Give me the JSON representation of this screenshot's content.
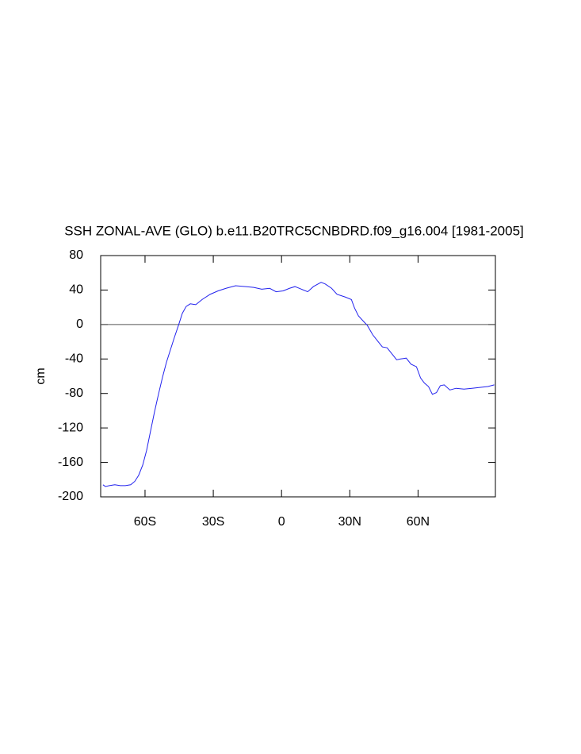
{
  "chart_data": {
    "type": "line",
    "title": "SSH ZONAL-AVE (GLO) b.e11.B20TRC5CNBDRD.f09_g16.004 [1981-2005]",
    "y_label": "cm",
    "xlim": [
      -79.5,
      94
    ],
    "ylim": [
      -200,
      80
    ],
    "xticks": [
      {
        "value": -60,
        "label": "60S"
      },
      {
        "value": -30,
        "label": "30S"
      },
      0,
      {
        "value": 30,
        "label": "30N"
      },
      {
        "value": 60,
        "label": "60N"
      }
    ],
    "yticks": [
      80,
      40,
      0,
      -40,
      -80,
      -120,
      -160,
      -200
    ],
    "reference_line": 0,
    "reference_color": "#555555",
    "grid": false,
    "series": [
      {
        "name": "SSH",
        "color": "#2222ee",
        "x": [
          -78.5,
          -77.4,
          -75.7,
          -73.3,
          -70.8,
          -68.7,
          -66.3,
          -64.5,
          -62.8,
          -61,
          -59.3,
          -57.6,
          -55.8,
          -54.1,
          -52.3,
          -50.6,
          -48.8,
          -47.1,
          -45.3,
          -43.6,
          -41.9,
          -40.1,
          -37.7,
          -34.9,
          -31.4,
          -27.9,
          -24.4,
          -20.2,
          -15.7,
          -12.2,
          -8.7,
          -5.2,
          -2.4,
          0.7,
          3.5,
          5.9,
          8.7,
          11.5,
          14,
          17.4,
          19.2,
          22,
          24.4,
          27.9,
          30.7,
          32.1,
          33.8,
          35.9,
          37.7,
          40.1,
          41.9,
          44.3,
          46.4,
          48.8,
          50.6,
          52.3,
          54.8,
          56.9,
          59.3,
          61.1,
          62.8,
          64.6,
          66.3,
          68.1,
          69.8,
          71.5,
          74,
          76.7,
          80.2,
          83.7,
          87.2,
          90.7,
          93.5
        ],
        "values": [
          -186,
          -188,
          -187,
          -186,
          -187,
          -187,
          -186,
          -182,
          -175,
          -163,
          -146,
          -124,
          -101,
          -81,
          -61,
          -44,
          -29,
          -15,
          -1,
          13,
          21,
          24,
          23,
          29,
          35,
          39,
          42,
          45,
          44,
          43,
          41,
          42,
          38,
          39,
          42,
          44,
          41,
          38,
          44,
          49,
          47,
          42,
          35,
          32,
          29,
          19,
          10,
          4,
          -1,
          -12,
          -18,
          -26,
          -27,
          -35,
          -41,
          -40,
          -39,
          -46,
          -49,
          -62,
          -68,
          -72,
          -81,
          -79,
          -71,
          -70,
          -76,
          -74,
          -75,
          -74,
          -73,
          -72,
          -70
        ]
      }
    ]
  }
}
